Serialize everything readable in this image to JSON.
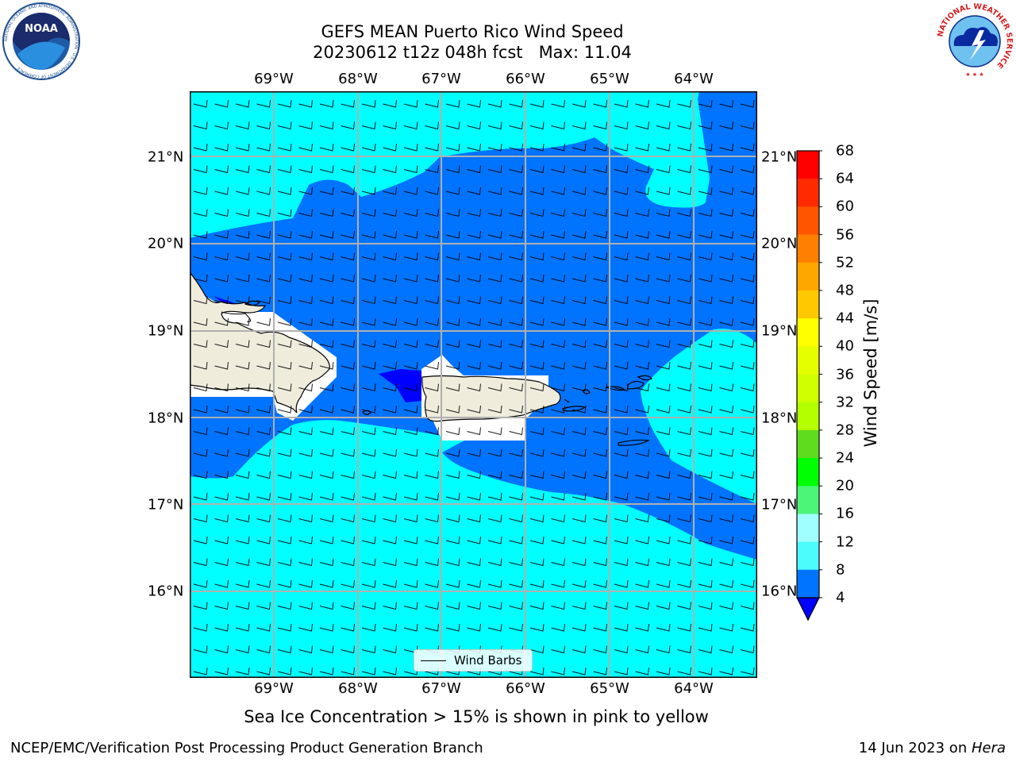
{
  "title": {
    "line1": "GEFS MEAN Puerto Rico Wind Speed",
    "line2": "20230612 t12z 048h fcst   Max: 11.04"
  },
  "map": {
    "lon_labels": [
      "69°W",
      "68°W",
      "67°W",
      "66°W",
      "65°W",
      "64°W"
    ],
    "lat_labels": [
      "21°N",
      "20°N",
      "19°N",
      "18°N",
      "17°N",
      "16°N"
    ],
    "legend_label": "Wind Barbs",
    "colors": {
      "land": "#efecdc",
      "wind_4_8": "#0073ff",
      "wind_8_12": "#00ffff",
      "wind_below_4": "#0000ff",
      "grid": "#b0b0b0"
    }
  },
  "colorbar": {
    "label": "Wind Speed [m/s]",
    "ticks": [
      "68",
      "64",
      "60",
      "56",
      "52",
      "48",
      "44",
      "40",
      "36",
      "32",
      "28",
      "24",
      "20",
      "16",
      "12",
      "8",
      "4"
    ],
    "colors": [
      "#ff0000",
      "#ff2a00",
      "#ff5400",
      "#ff7f00",
      "#ffa600",
      "#ffc800",
      "#ffff00",
      "#e6ff00",
      "#d0ff00",
      "#b4ff00",
      "#5fdc1e",
      "#00ff00",
      "#4cf478",
      "#a0ffff",
      "#4cfcfc",
      "#00ffff",
      "#0073ff"
    ],
    "under_color": "#0000ff"
  },
  "note": "Sea Ice Concentration > 15% is shown in pink to yellow",
  "footer": {
    "left": "NCEP/EMC/Verification Post Processing Product Generation Branch",
    "right_prefix": "14 Jun 2023 on ",
    "right_host": "Hera"
  },
  "logos": {
    "noaa_text": "NOAA",
    "noaa_ring": "NATIONAL OCEANIC AND ATMOSPHERIC ADMINISTRATION · U.S. DEPARTMENT OF COMMERCE",
    "nws_ring": "NATIONAL WEATHER SERVICE"
  }
}
